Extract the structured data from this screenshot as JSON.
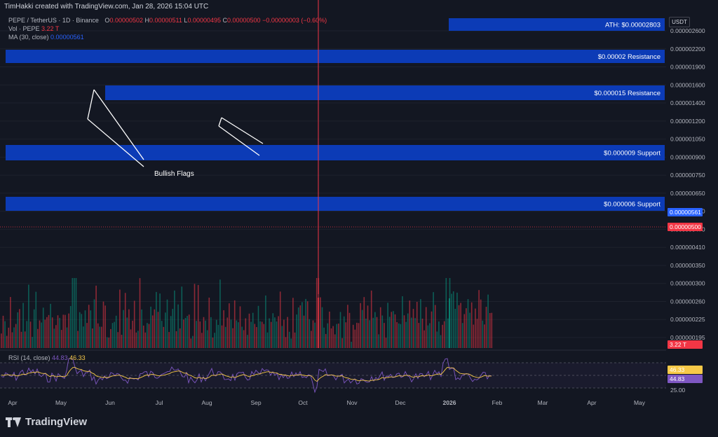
{
  "banner": {
    "text": "TimHakki created with TradingView.com, Jan 28, 2026 15:04 UTC"
  },
  "legend": {
    "symbol": "PEPE / TetherUS · 1D · Binance",
    "open_label": "O",
    "open": "0.00000502",
    "high_label": "H",
    "high": "0.00000511",
    "low_label": "L",
    "low": "0.00000495",
    "close_label": "C",
    "close": "0.00000500",
    "change": "−0.00000003 (−0.60%)",
    "vol_label": "Vol · PEPE",
    "vol": "3.22 T",
    "ma_label": "MA (30, close)",
    "ma": "0.00000561"
  },
  "rsi_legend": {
    "label": "RSI (14, close)",
    "rsi": "44.83",
    "rsi_ma": "46.33"
  },
  "unit": "USDT",
  "footer": {
    "brand": "TradingView"
  },
  "colors": {
    "background": "#131722",
    "up": "#089981",
    "down": "#f23645",
    "zone": "#0c3dbf",
    "ma": "#2962ff",
    "rsi": "#7e57c2",
    "rsi_ma": "#f7c948",
    "projection": "#4caf50"
  },
  "chart_data": [
    {
      "type": "candlestick",
      "title": "PEPE / TetherUS · 1D · Binance",
      "y_scale": "log",
      "ylim": [
        1.825e-06,
        3.35e-06
      ],
      "y_ticks": [
        {
          "v": 2.6e-06,
          "label": "0.000002600"
        },
        {
          "v": 2.2e-06,
          "label": "0.000002200"
        },
        {
          "v": 1.9e-06,
          "label": "0.000001900"
        },
        {
          "v": 1.6e-06,
          "label": "0.000001600"
        },
        {
          "v": 1.4e-06,
          "label": "0.000001400"
        },
        {
          "v": 1.2e-06,
          "label": "0.000001200"
        },
        {
          "v": 1.05e-06,
          "label": "0.000001050"
        },
        {
          "v": 9e-07,
          "label": "0.000000900"
        },
        {
          "v": 7.5e-07,
          "label": "0.000000750"
        },
        {
          "v": 6.5e-07,
          "label": "0.000000650"
        },
        {
          "v": 5.6e-07,
          "label": "0.000000560"
        },
        {
          "v": 4.7e-07,
          "label": "0.000000470"
        },
        {
          "v": 4.1e-07,
          "label": "0.000000410"
        },
        {
          "v": 3.5e-07,
          "label": "0.000000350"
        },
        {
          "v": 3e-07,
          "label": "0.000000300"
        },
        {
          "v": 2.6e-07,
          "label": "0.000000260"
        },
        {
          "v": 2.25e-07,
          "label": "0.000000225"
        },
        {
          "v": 1.95e-07,
          "label": "0.000000195"
        }
      ],
      "x_labels": [
        "Apr",
        "May",
        "Jun",
        "Jul",
        "Aug",
        "Sep",
        "Oct",
        "Nov",
        "Dec",
        "2026",
        "Feb",
        "Mar",
        "Apr",
        "May"
      ],
      "price_path": [
        [
          0,
          9e-06
        ],
        [
          30,
          8.2e-06
        ],
        [
          60,
          1.05e-05
        ],
        [
          75,
          9.6e-06
        ],
        [
          100,
          8.8e-06
        ],
        [
          108,
          1.4e-05
        ],
        [
          120,
          1.5e-05
        ],
        [
          135,
          1.58e-05
        ],
        [
          150,
          1.3e-05
        ],
        [
          170,
          1.25e-05
        ],
        [
          185,
          1.1e-05
        ],
        [
          200,
          9.5e-06
        ],
        [
          215,
          1e-05
        ],
        [
          230,
          1.02e-05
        ],
        [
          245,
          1.25e-05
        ],
        [
          260,
          1.45e-05
        ],
        [
          272,
          1.48e-05
        ],
        [
          285,
          1.18e-05
        ],
        [
          300,
          1.1e-05
        ],
        [
          315,
          1.25e-05
        ],
        [
          330,
          1.15e-05
        ],
        [
          345,
          1.08e-05
        ],
        [
          360,
          1.02e-05
        ],
        [
          375,
          1.05e-05
        ],
        [
          392,
          1.2e-05
        ],
        [
          405,
          1.08e-05
        ],
        [
          420,
          9.5e-06
        ],
        [
          438,
          1.05e-05
        ],
        [
          450,
          1e-05
        ],
        [
          455,
          6.5e-06
        ],
        [
          470,
          7e-06
        ],
        [
          490,
          6.8e-06
        ],
        [
          510,
          5.6e-06
        ],
        [
          530,
          4.5e-06
        ],
        [
          550,
          4.3e-06
        ],
        [
          565,
          4.3e-06
        ],
        [
          580,
          4.6e-06
        ],
        [
          600,
          4.2e-06
        ],
        [
          615,
          4e-06
        ],
        [
          635,
          4.1e-06
        ],
        [
          642,
          5.8e-06
        ],
        [
          652,
          7.2e-06
        ],
        [
          662,
          6.2e-06
        ],
        [
          670,
          6.8e-06
        ],
        [
          685,
          5.3e-06
        ],
        [
          700,
          5e-06
        ]
      ],
      "support_resistance_zones": [
        {
          "label": "ATH: $0.00002803",
          "top": 2.85e-05,
          "bottom": 2.45e-05
        },
        {
          "label": "$0.00002 Resistance",
          "top": 2.18e-05,
          "bottom": 1.95e-05
        },
        {
          "label": "$0.000015 Resistance",
          "top": 1.6e-05,
          "bottom": 1.43e-05
        },
        {
          "label": "$0.000009 Support",
          "top": 1.03e-05,
          "bottom": 8.9e-06
        },
        {
          "label": "$0.000006 Support",
          "top": 6.4e-06,
          "bottom": 5.75e-06
        }
      ],
      "annotations": [
        {
          "text": "Bullish Flags"
        }
      ],
      "projection_path": [
        [
          700,
          5e-06
        ],
        [
          728,
          6.9e-06
        ],
        [
          738,
          5.8e-06
        ],
        [
          770,
          1e-05
        ],
        [
          780,
          8.8e-06
        ],
        [
          800,
          1.6e-05
        ],
        [
          810,
          1.45e-05
        ],
        [
          822,
          2.35e-05
        ],
        [
          830,
          2e-05
        ],
        [
          838,
          2.803e-05
        ]
      ],
      "price_tags": [
        {
          "value": 5.61e-06,
          "label": "0.00000561",
          "kind": "ma"
        },
        {
          "value": 5e-06,
          "label": "0.00000500",
          "kind": "close"
        },
        {
          "label": "3.22 T",
          "kind": "volume"
        }
      ],
      "ma_path": [
        [
          100,
          9e-06
        ],
        [
          130,
          1.12e-05
        ],
        [
          170,
          1.23e-05
        ],
        [
          210,
          1.14e-05
        ],
        [
          250,
          1.18e-05
        ],
        [
          280,
          1.25e-05
        ],
        [
          320,
          1.2e-05
        ],
        [
          360,
          1.15e-05
        ],
        [
          400,
          1.09e-05
        ],
        [
          440,
          1.03e-05
        ],
        [
          470,
          9e-06
        ],
        [
          500,
          7.2e-06
        ],
        [
          530,
          5.9e-06
        ],
        [
          560,
          5e-06
        ],
        [
          590,
          4.5e-06
        ],
        [
          620,
          4.2e-06
        ],
        [
          640,
          4.5e-06
        ],
        [
          670,
          5.6e-06
        ],
        [
          700,
          5.61e-06
        ]
      ],
      "rsi": {
        "label": "RSI (14, close)",
        "ticks": [
          {
            "v": 70,
            "label": ""
          },
          {
            "v": 50,
            "label": ""
          },
          {
            "v": 25,
            "label": "25.00"
          }
        ],
        "values": [
          [
            "RSI",
            44.83
          ],
          [
            "RSI-based MA",
            46.33
          ]
        ]
      }
    }
  ]
}
